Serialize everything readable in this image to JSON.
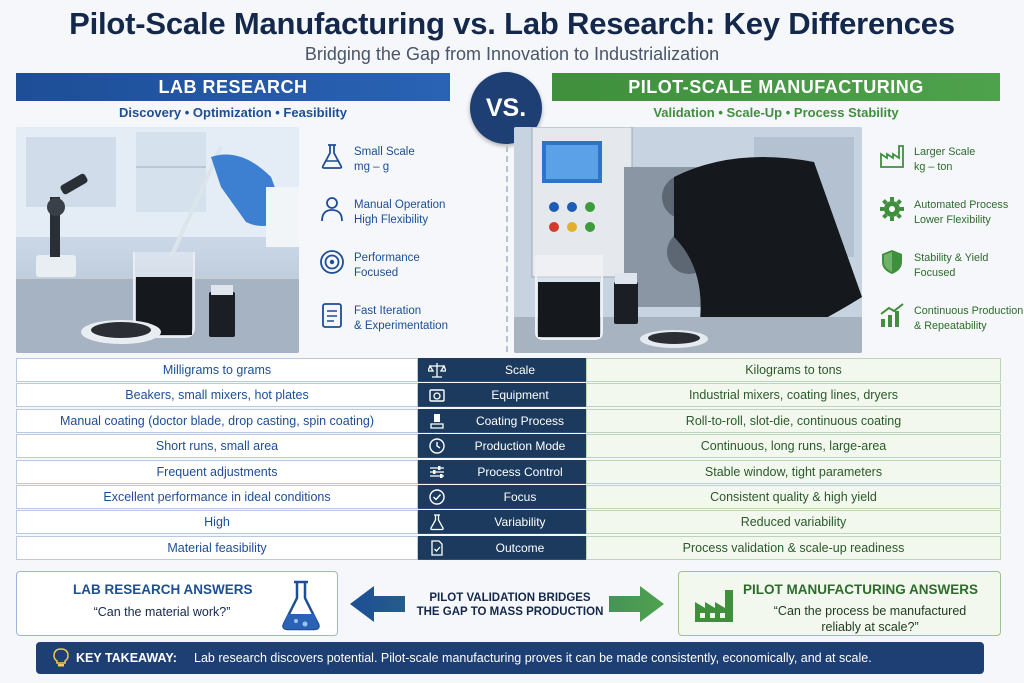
{
  "header": {
    "title": "Pilot-Scale Manufacturing vs. Lab Research: Key Differences",
    "subtitle": "Bridging the Gap from Innovation to Industrialization",
    "vs": "VS."
  },
  "lab": {
    "banner": "LAB RESEARCH",
    "tagline": "Discovery • Optimization • Feasibility",
    "features": [
      {
        "icon": "flask-icon",
        "l1": "Small Scale",
        "l2": "mg – g"
      },
      {
        "icon": "person-hand-icon",
        "l1": "Manual Operation",
        "l2": "High Flexibility"
      },
      {
        "icon": "target-icon",
        "l1": "Performance",
        "l2": "Focused"
      },
      {
        "icon": "checklist-icon",
        "l1": "Fast Iteration",
        "l2": "& Experimentation"
      }
    ]
  },
  "pilot": {
    "banner": "PILOT-SCALE MANUFACTURING",
    "tagline": "Validation • Scale-Up • Process Stability",
    "features": [
      {
        "icon": "factory-icon",
        "l1": "Larger Scale",
        "l2": "kg – ton"
      },
      {
        "icon": "gear-icon",
        "l1": "Automated Process",
        "l2": "Lower Flexibility"
      },
      {
        "icon": "shield-check-icon",
        "l1": "Stability & Yield",
        "l2": "Focused"
      },
      {
        "icon": "growth-chart-icon",
        "l1": "Continuous Production",
        "l2": "& Repeatability"
      }
    ]
  },
  "comparison": [
    {
      "lab": "Milligrams to grams",
      "label": "Scale",
      "icon": "scale-icon",
      "pilot": "Kilograms to tons"
    },
    {
      "lab": "Beakers, small mixers, hot plates",
      "label": "Equipment",
      "icon": "equipment-icon",
      "pilot": "Industrial mixers, coating lines, dryers"
    },
    {
      "lab": "Manual coating (doctor blade, drop casting, spin coating)",
      "label": "Coating Process",
      "icon": "coating-icon",
      "pilot": "Roll-to-roll, slot-die, continuous coating"
    },
    {
      "lab": "Short runs, small area",
      "label": "Production Mode",
      "icon": "clock-icon",
      "pilot": "Continuous, long runs, large-area"
    },
    {
      "lab": "Frequent adjustments",
      "label": "Process Control",
      "icon": "sliders-icon",
      "pilot": "Stable window, tight parameters"
    },
    {
      "lab": "Excellent performance in ideal conditions",
      "label": "Focus",
      "icon": "check-circle-icon",
      "pilot": "Consistent quality & high yield"
    },
    {
      "lab": "High",
      "label": "Variability",
      "icon": "flask-icon",
      "pilot": "Reduced variability"
    },
    {
      "lab": "Material feasibility",
      "label": "Outcome",
      "icon": "document-check-icon",
      "pilot": "Process validation & scale-up readiness"
    }
  ],
  "answers": {
    "lab_heading": "LAB RESEARCH ANSWERS",
    "lab_question": "“Can the material work?”",
    "pilot_heading": "PILOT MANUFACTURING ANSWERS",
    "pilot_question_l1": "“Can the process be manufactured",
    "pilot_question_l2": "reliably at scale?”",
    "bridge_l1": "PILOT VALIDATION BRIDGES",
    "bridge_l2": "THE GAP TO MASS PRODUCTION"
  },
  "takeaway": {
    "label": "KEY TAKEAWAY:",
    "text": "Lab research discovers potential. Pilot-scale manufacturing proves it can be made consistently, economically, and at scale.",
    "icon": "lightbulb-icon"
  },
  "colors": {
    "lab": "#1d4e96",
    "pilot": "#3f8f3d",
    "dark": "#1e3f73"
  }
}
